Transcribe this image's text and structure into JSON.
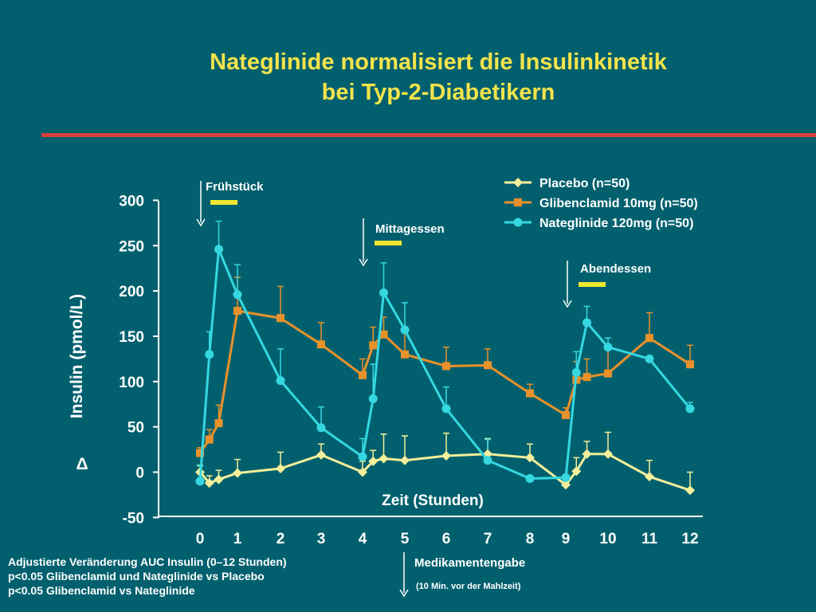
{
  "title_line1": "Nateglinide normalisiert die Insulinkinetik",
  "title_line2": "bei Typ-2-Diabetikern",
  "colors": {
    "background": "#02606e",
    "title": "#f3e34a",
    "divider": "#d8413a",
    "axis": "#ffffff",
    "placebo": "#f4ef9a",
    "glibenclamid": "#e9912a",
    "nateglinide": "#35d7e0",
    "meal_bar": "#f1e630"
  },
  "chart_data": {
    "type": "line",
    "ylabel": "Insulin (pmol/L)",
    "ylabel_symbol": "Δ",
    "xlabel": "Zeit (Stunden)",
    "ylim": [
      -50,
      300
    ],
    "yticks": [
      -50,
      0,
      50,
      100,
      150,
      200,
      250,
      300
    ],
    "xticks": [
      0,
      1,
      2,
      3,
      4,
      5,
      6,
      7,
      8,
      9,
      10,
      11,
      12
    ],
    "legend_position": "top-right",
    "series": [
      {
        "name": "Placebo (n=50)",
        "marker": "diamond",
        "points": [
          {
            "x": 0,
            "y": 0,
            "err": 7
          },
          {
            "x": 0.25,
            "y": -12,
            "err": 8
          },
          {
            "x": 0.5,
            "y": -8,
            "err": 10
          },
          {
            "x": 1,
            "y": -1,
            "err": 15
          },
          {
            "x": 2,
            "y": 4,
            "err": 18
          },
          {
            "x": 3,
            "y": 19,
            "err": 12
          },
          {
            "x": 4,
            "y": 0,
            "err": 12
          },
          {
            "x": 4.25,
            "y": 12,
            "err": 12
          },
          {
            "x": 4.5,
            "y": 15,
            "err": 27
          },
          {
            "x": 5,
            "y": 13,
            "err": 27
          },
          {
            "x": 6,
            "y": 18,
            "err": 25
          },
          {
            "x": 7,
            "y": 20,
            "err": 17
          },
          {
            "x": 8,
            "y": 16,
            "err": 15
          },
          {
            "x": 9,
            "y": -14,
            "err": 11
          },
          {
            "x": 9.25,
            "y": 1,
            "err": 15
          },
          {
            "x": 9.5,
            "y": 20,
            "err": 14
          },
          {
            "x": 10,
            "y": 20,
            "err": 24
          },
          {
            "x": 11,
            "y": -5,
            "err": 18
          },
          {
            "x": 12,
            "y": -20,
            "err": 20
          }
        ]
      },
      {
        "name": "Glibenclamid 10mg (n=50)",
        "marker": "square",
        "points": [
          {
            "x": 0,
            "y": 21,
            "err": 6
          },
          {
            "x": 0.25,
            "y": 36,
            "err": 11
          },
          {
            "x": 0.5,
            "y": 54,
            "err": 20
          },
          {
            "x": 1,
            "y": 178,
            "err": 37
          },
          {
            "x": 2,
            "y": 170,
            "err": 35
          },
          {
            "x": 3,
            "y": 141,
            "err": 24
          },
          {
            "x": 4,
            "y": 107,
            "err": 18
          },
          {
            "x": 4.25,
            "y": 140,
            "err": 20
          },
          {
            "x": 4.5,
            "y": 152,
            "err": 19
          },
          {
            "x": 5,
            "y": 130,
            "err": 25
          },
          {
            "x": 6,
            "y": 117,
            "err": 21
          },
          {
            "x": 7,
            "y": 118,
            "err": 18
          },
          {
            "x": 8,
            "y": 87,
            "err": 10
          },
          {
            "x": 9,
            "y": 63,
            "err": 8
          },
          {
            "x": 9.25,
            "y": 102,
            "err": 20
          },
          {
            "x": 9.5,
            "y": 105,
            "err": 20
          },
          {
            "x": 10,
            "y": 109,
            "err": 30
          },
          {
            "x": 11,
            "y": 148,
            "err": 28
          },
          {
            "x": 12,
            "y": 119,
            "err": 21
          }
        ]
      },
      {
        "name": "Nateglinide 120mg (n=50)",
        "marker": "circle",
        "points": [
          {
            "x": 0,
            "y": -10,
            "err": 18
          },
          {
            "x": 0.25,
            "y": 130,
            "err": 25
          },
          {
            "x": 0.5,
            "y": 246,
            "err": 31
          },
          {
            "x": 1,
            "y": 196,
            "err": 33
          },
          {
            "x": 2,
            "y": 101,
            "err": 35
          },
          {
            "x": 3,
            "y": 49,
            "err": 23
          },
          {
            "x": 4,
            "y": 17,
            "err": 20
          },
          {
            "x": 4.25,
            "y": 81,
            "err": 38
          },
          {
            "x": 4.5,
            "y": 198,
            "err": 33
          },
          {
            "x": 5,
            "y": 157,
            "err": 30
          },
          {
            "x": 6,
            "y": 70,
            "err": 24
          },
          {
            "x": 7,
            "y": 13,
            "err": 23
          },
          {
            "x": 8,
            "y": -7,
            "err": 0
          },
          {
            "x": 9,
            "y": -6,
            "err": 0
          },
          {
            "x": 9.25,
            "y": 110,
            "err": 23
          },
          {
            "x": 9.5,
            "y": 165,
            "err": 18
          },
          {
            "x": 10,
            "y": 138,
            "err": 10
          },
          {
            "x": 11,
            "y": 125,
            "err": 0
          },
          {
            "x": 12,
            "y": 70,
            "err": 7
          }
        ]
      }
    ],
    "annotations": [
      {
        "text": "Frühstück",
        "x": 0
      },
      {
        "text": "Mittagessen",
        "x": 4
      },
      {
        "text": "Abendessen",
        "x": 9
      }
    ]
  },
  "footnotes": [
    "Adjustierte Veränderung AUC Insulin (0–12 Stunden)",
    "p<0.05 Glibenclamid und Nateglinide vs Placebo",
    "p<0.05 Glibenclamid vs Nateglinide"
  ],
  "medication_label": "Medikamentengabe",
  "medication_note": "(10 Min. vor der Mahlzeit)"
}
